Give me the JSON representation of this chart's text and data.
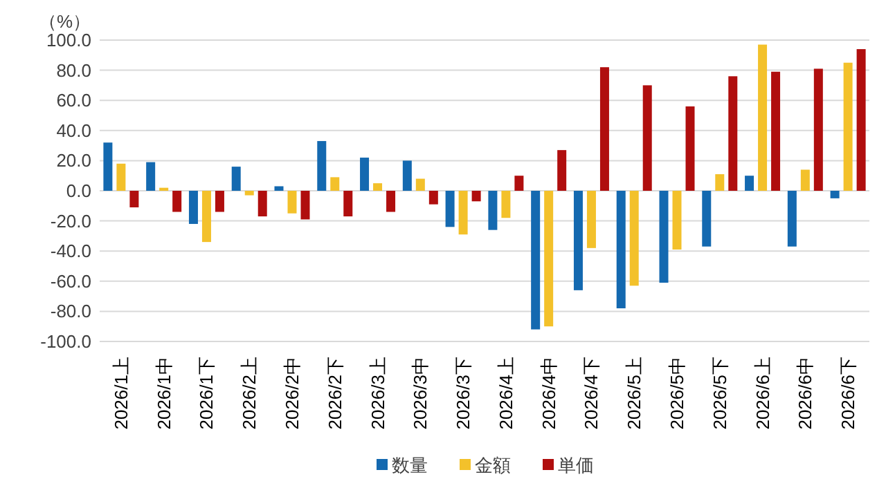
{
  "chart_data": {
    "type": "bar",
    "ylabel": "（%）",
    "categories": [
      "2026/1上",
      "2026/1中",
      "2026/1下",
      "2026/2上",
      "2026/2中",
      "2026/2下",
      "2026/3上",
      "2026/3中",
      "2026/3下",
      "2026/4上",
      "2026/4中",
      "2026/4下",
      "2026/5上",
      "2026/5中",
      "2026/5下",
      "2026/6上",
      "2026/6中",
      "2026/6下"
    ],
    "series": [
      {
        "name": "数量",
        "color": "#1469b0",
        "values": [
          32,
          19,
          -22,
          16,
          3,
          33,
          22,
          20,
          -24,
          -26,
          -92,
          -66,
          -78,
          -61,
          -37,
          10,
          -37,
          -5
        ]
      },
      {
        "name": "金額",
        "color": "#f3c12b",
        "values": [
          18,
          2,
          -34,
          -3,
          -15,
          9,
          5,
          8,
          -29,
          -18,
          -90,
          -38,
          -63,
          -39,
          11,
          97,
          14,
          85
        ]
      },
      {
        "name": "単価",
        "color": "#b00e0e",
        "values": [
          -11,
          -14,
          -14,
          -17,
          -19,
          -17,
          -14,
          -9,
          -7,
          10,
          27,
          82,
          70,
          56,
          76,
          79,
          81,
          94
        ]
      }
    ],
    "ylim": [
      -100,
      100
    ],
    "yticks": [
      {
        "value": 100,
        "label": "100.0"
      },
      {
        "value": 80,
        "label": "80.0"
      },
      {
        "value": 60,
        "label": "60.0"
      },
      {
        "value": 40,
        "label": "40.0"
      },
      {
        "value": 20,
        "label": "20.0"
      },
      {
        "value": 0,
        "label": "0.0"
      },
      {
        "value": -20,
        "label": "-20.0"
      },
      {
        "value": -40,
        "label": "-40.0"
      },
      {
        "value": -60,
        "label": "-60.0"
      },
      {
        "value": -80,
        "label": "-80.0"
      },
      {
        "value": -100,
        "label": "-100.0"
      }
    ],
    "grid": "y",
    "legend": "bottom"
  }
}
